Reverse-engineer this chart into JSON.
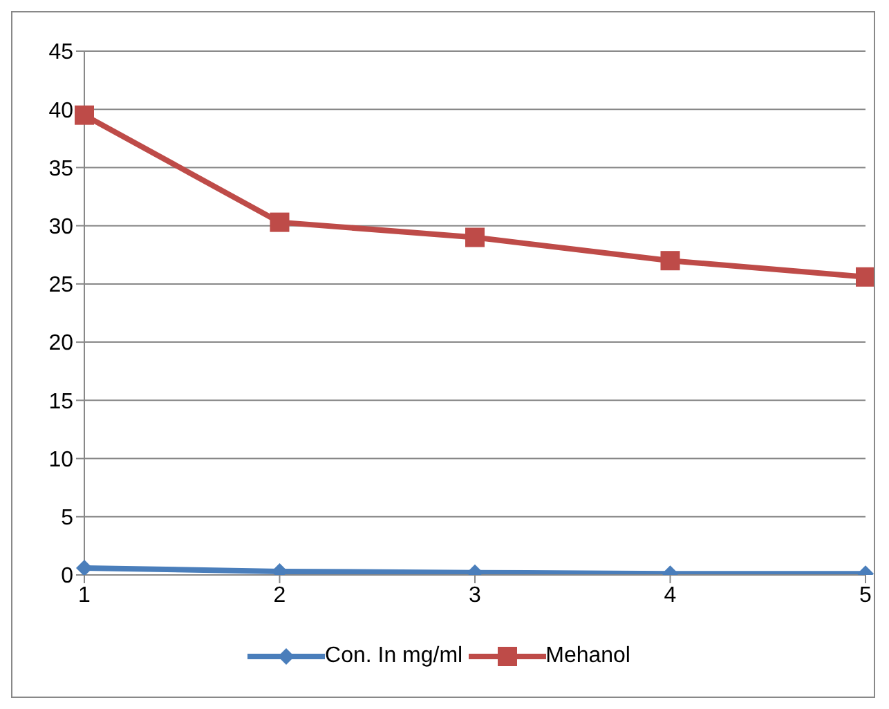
{
  "chart_data": {
    "type": "line",
    "categories": [
      "1",
      "2",
      "3",
      "4",
      "5"
    ],
    "series": [
      {
        "name": "Con. In mg/ml",
        "color": "#4a7ebb",
        "values": [
          0.6,
          0.3,
          0.2,
          0.1,
          0.1
        ],
        "marker": "diamond"
      },
      {
        "name": "Mehanol",
        "color": "#be4b48",
        "values": [
          39.5,
          30.3,
          29,
          27,
          25.6
        ],
        "marker": "square"
      }
    ],
    "ylim": [
      0,
      45
    ],
    "yticks": [
      0,
      5,
      10,
      15,
      20,
      25,
      30,
      35,
      40,
      45
    ],
    "grid": "y",
    "legend": "bottom"
  }
}
